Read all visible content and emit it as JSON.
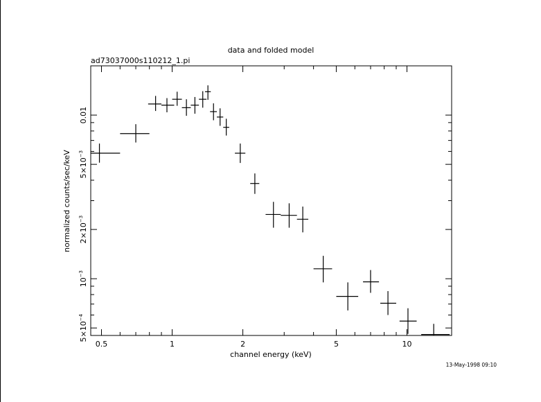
{
  "chart_data": {
    "type": "scatter",
    "title": "data and folded model",
    "subtitle": "ad73037000s110212_1.pi",
    "xlabel": "channel energy (keV)",
    "ylabel": "normalized counts/sec/keV",
    "timestamp": "13-May-1998 09:10",
    "x_scale": "log",
    "y_scale": "log",
    "xlim": [
      0.45,
      15.5
    ],
    "ylim": [
      0.00045,
      0.02
    ],
    "grid": false,
    "legend": "none",
    "x_ticks": [
      {
        "value": 0.5,
        "label": "0.5"
      },
      {
        "value": 1,
        "label": "1"
      },
      {
        "value": 2,
        "label": "2"
      },
      {
        "value": 5,
        "label": "5"
      },
      {
        "value": 10,
        "label": "10"
      }
    ],
    "y_ticks": [
      {
        "value": 0.0005,
        "mant": "5×10",
        "exp": "−4"
      },
      {
        "value": 0.001,
        "mant": "10",
        "exp": "−3"
      },
      {
        "value": 0.002,
        "mant": "2×10",
        "exp": "−3"
      },
      {
        "value": 0.005,
        "mant": "5×10",
        "exp": "−3"
      },
      {
        "value": 0.01,
        "mant": "0.01",
        "exp": ""
      }
    ],
    "series": [
      {
        "points": [
          {
            "x": 0.49,
            "xlo": 0.45,
            "xhi": 0.6,
            "y": 0.00585,
            "ylo": 0.00512,
            "yhi": 0.0067
          },
          {
            "x": 0.7,
            "xlo": 0.6,
            "xhi": 0.8,
            "y": 0.00771,
            "ylo": 0.0068,
            "yhi": 0.0088
          },
          {
            "x": 0.85,
            "xlo": 0.79,
            "xhi": 0.9,
            "y": 0.0117,
            "ylo": 0.0106,
            "yhi": 0.0131
          },
          {
            "x": 0.95,
            "xlo": 0.9,
            "xhi": 1.02,
            "y": 0.0115,
            "ylo": 0.0104,
            "yhi": 0.0127
          },
          {
            "x": 1.05,
            "xlo": 1.0,
            "xhi": 1.1,
            "y": 0.0125,
            "ylo": 0.0114,
            "yhi": 0.0139
          },
          {
            "x": 1.15,
            "xlo": 1.1,
            "xhi": 1.2,
            "y": 0.0111,
            "ylo": 0.0099,
            "yhi": 0.0125
          },
          {
            "x": 1.25,
            "xlo": 1.2,
            "xhi": 1.3,
            "y": 0.0115,
            "ylo": 0.0102,
            "yhi": 0.0129
          },
          {
            "x": 1.35,
            "xlo": 1.3,
            "xhi": 1.4,
            "y": 0.0125,
            "ylo": 0.0111,
            "yhi": 0.014
          },
          {
            "x": 1.42,
            "xlo": 1.38,
            "xhi": 1.46,
            "y": 0.0139,
            "ylo": 0.0124,
            "yhi": 0.0152
          },
          {
            "x": 1.5,
            "xlo": 1.45,
            "xhi": 1.55,
            "y": 0.0105,
            "ylo": 0.0093,
            "yhi": 0.0118
          },
          {
            "x": 1.6,
            "xlo": 1.55,
            "xhi": 1.65,
            "y": 0.00973,
            "ylo": 0.0086,
            "yhi": 0.011
          },
          {
            "x": 1.7,
            "xlo": 1.65,
            "xhi": 1.75,
            "y": 0.00842,
            "ylo": 0.0075,
            "yhi": 0.0095
          },
          {
            "x": 1.95,
            "xlo": 1.85,
            "xhi": 2.05,
            "y": 0.00585,
            "ylo": 0.0051,
            "yhi": 0.0067
          },
          {
            "x": 2.25,
            "xlo": 2.15,
            "xhi": 2.35,
            "y": 0.00382,
            "ylo": 0.0033,
            "yhi": 0.0044
          },
          {
            "x": 2.7,
            "xlo": 2.5,
            "xhi": 2.9,
            "y": 0.00247,
            "ylo": 0.00205,
            "yhi": 0.00295
          },
          {
            "x": 3.15,
            "xlo": 2.9,
            "xhi": 3.4,
            "y": 0.00244,
            "ylo": 0.00205,
            "yhi": 0.00289
          },
          {
            "x": 3.6,
            "xlo": 3.4,
            "xhi": 3.8,
            "y": 0.00231,
            "ylo": 0.00192,
            "yhi": 0.00276
          },
          {
            "x": 4.4,
            "xlo": 4.0,
            "xhi": 4.8,
            "y": 0.00115,
            "ylo": 0.00095,
            "yhi": 0.00138
          },
          {
            "x": 5.6,
            "xlo": 5.0,
            "xhi": 6.2,
            "y": 0.00078,
            "ylo": 0.00064,
            "yhi": 0.00095
          },
          {
            "x": 7.0,
            "xlo": 6.5,
            "xhi": 7.6,
            "y": 0.000957,
            "ylo": 0.00082,
            "yhi": 0.00113
          },
          {
            "x": 8.3,
            "xlo": 7.7,
            "xhi": 9.0,
            "y": 0.000708,
            "ylo": 0.0006,
            "yhi": 0.00084
          },
          {
            "x": 10.1,
            "xlo": 9.3,
            "xhi": 11.0,
            "y": 0.000551,
            "ylo": 0.00046,
            "yhi": 0.00066
          },
          {
            "x": 13.0,
            "xlo": 11.5,
            "xhi": 15.2,
            "y": 0.000456,
            "ylo": 0.00039,
            "yhi": 0.00053
          }
        ]
      }
    ]
  }
}
